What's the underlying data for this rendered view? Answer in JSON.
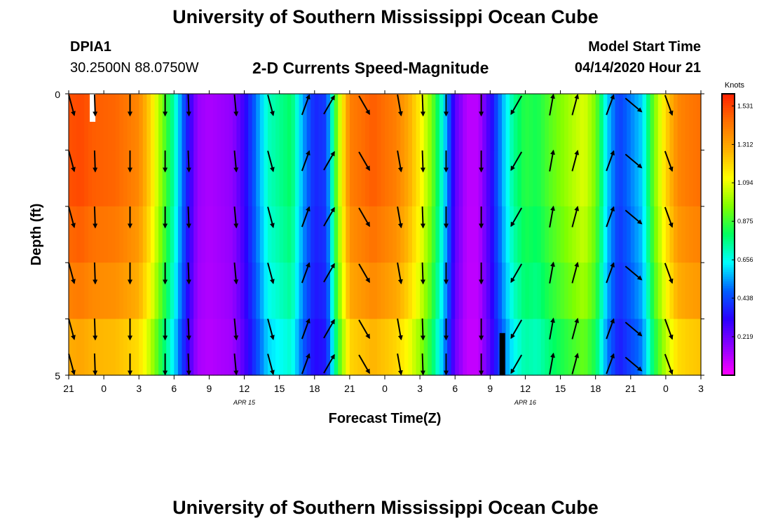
{
  "header": {
    "title": "University of Southern Mississippi Ocean Cube",
    "station_id": "DPIA1",
    "coordinates": "30.2500N 88.0750W",
    "subtitle": "2-D Currents Speed-Magnitude",
    "model_label": "Model Start Time",
    "model_time": "04/14/2020 Hour 21"
  },
  "footer": {
    "title": "University of Southern Mississippi Ocean Cube"
  },
  "chart_data": {
    "type": "heatmap",
    "title": "2-D Currents Speed-Magnitude",
    "xlabel": "Forecast Time(Z)",
    "ylabel": "Depth (ft)",
    "x_ticks": [
      "21",
      "0",
      "3",
      "6",
      "9",
      "12",
      "15",
      "18",
      "21",
      "0",
      "3",
      "6",
      "9",
      "12",
      "15",
      "18",
      "21",
      "0",
      "3"
    ],
    "date_labels": [
      {
        "text": "APR 15",
        "hour_index": 5
      },
      {
        "text": "APR 16",
        "hour_index": 13
      }
    ],
    "y_ticks": [
      "0",
      "5"
    ],
    "ylim": [
      0,
      5
    ],
    "hours": 54,
    "depth_layers": 5,
    "colorbar": {
      "unit": "Knots",
      "ticks": [
        "1.531",
        "1.312",
        "1.094",
        "0.875",
        "0.656",
        "0.438",
        "0.219"
      ],
      "min": 0,
      "max": 1.6,
      "colors": [
        "#ff00ff",
        "#9000ff",
        "#2a00ff",
        "#0060ff",
        "#00ffff",
        "#00ff60",
        "#80ff00",
        "#ffff00",
        "#ffb000",
        "#ff7000",
        "#ff2000"
      ]
    },
    "speed_keyframes": {
      "hours": [
        0,
        1,
        2,
        4,
        6,
        7,
        8,
        9,
        10,
        11,
        12,
        14,
        15,
        16,
        17,
        19,
        20,
        21,
        22,
        23,
        24,
        26,
        28,
        29,
        30,
        31,
        32,
        33,
        34,
        35,
        36,
        37,
        38,
        39,
        40,
        41,
        43,
        44,
        45,
        46,
        47,
        49,
        50,
        51,
        52,
        53,
        54
      ],
      "speeds": [
        1.5,
        1.52,
        1.48,
        1.46,
        1.38,
        1.2,
        0.95,
        0.72,
        0.4,
        0.15,
        0.12,
        0.16,
        0.3,
        0.5,
        0.7,
        0.8,
        0.55,
        0.38,
        0.42,
        1.0,
        1.4,
        1.48,
        1.4,
        1.3,
        1.15,
        0.95,
        0.65,
        0.25,
        0.1,
        0.1,
        0.3,
        0.55,
        0.75,
        0.85,
        0.82,
        0.9,
        1.02,
        1.08,
        0.95,
        0.6,
        0.42,
        0.6,
        0.95,
        1.2,
        1.38,
        1.42,
        1.44
      ]
    },
    "depth_factors": [
      1.0,
      1.0,
      0.97,
      0.93,
      0.86
    ],
    "vectors": {
      "hour_positions": [
        0,
        2,
        5,
        8,
        10,
        14,
        17,
        20,
        22,
        25,
        28,
        30,
        32,
        35,
        38,
        41,
        43,
        46,
        48,
        51
      ],
      "directions_deg": [
        165,
        178,
        180,
        180,
        178,
        175,
        165,
        20,
        30,
        150,
        170,
        178,
        180,
        180,
        210,
        10,
        15,
        20,
        130,
        160
      ],
      "speeds_knots": [
        1.5,
        1.5,
        1.48,
        1.46,
        1.38,
        0.4,
        0.12,
        0.5,
        0.8,
        0.4,
        1.4,
        1.48,
        1.4,
        1.15,
        0.1,
        0.55,
        0.82,
        0.9,
        0.9,
        1.38
      ]
    },
    "markers": [
      {
        "hour": 1.5,
        "layer": 0,
        "color": "white"
      },
      {
        "hour": 36.5,
        "layer": 4,
        "color": "black"
      }
    ]
  }
}
